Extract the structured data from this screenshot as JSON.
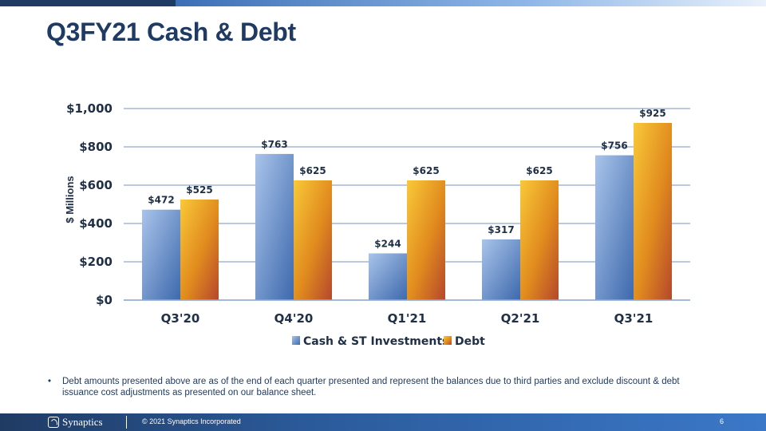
{
  "page": {
    "title": "Q3FY21 Cash & Debt",
    "footnote_bullet": "•",
    "footnote": "Debt amounts presented above are as of the end of each quarter presented and represent the balances due to third parties and exclude discount & debt issuance cost adjustments as presented on our balance sheet.",
    "footer": {
      "logo_text": "Synaptics",
      "copyright": "© 2021 Synaptics Incorporated",
      "page_number": "6"
    }
  },
  "colors": {
    "brand_dark": "#1f3b63",
    "cash_light": "#9dbbe6",
    "cash_dark": "#3d68ad",
    "debt_light": "#f5c04a",
    "debt_dark": "#c0582a",
    "gridline": "#8ea9cf"
  },
  "chart_data": {
    "type": "bar",
    "categories": [
      "Q3'20",
      "Q4'20",
      "Q1'21",
      "Q2'21",
      "Q3'21"
    ],
    "series": [
      {
        "name": "Cash & ST Investments",
        "values": [
          472,
          763,
          244,
          317,
          756
        ],
        "labels": [
          "$472",
          "$763",
          "$244",
          "$317",
          "$756"
        ]
      },
      {
        "name": "Debt",
        "values": [
          525,
          625,
          625,
          625,
          925
        ],
        "labels": [
          "$525",
          "$625",
          "$625",
          "$625",
          "$925"
        ]
      }
    ],
    "ylabel": "$ Millions",
    "ylim": [
      0,
      1000
    ],
    "yticks": [
      0,
      200,
      400,
      600,
      800,
      1000
    ],
    "ytick_labels": [
      "$0",
      "$200",
      "$400",
      "$600",
      "$800",
      "$1,000"
    ],
    "grid": true,
    "legend": "bottom"
  }
}
